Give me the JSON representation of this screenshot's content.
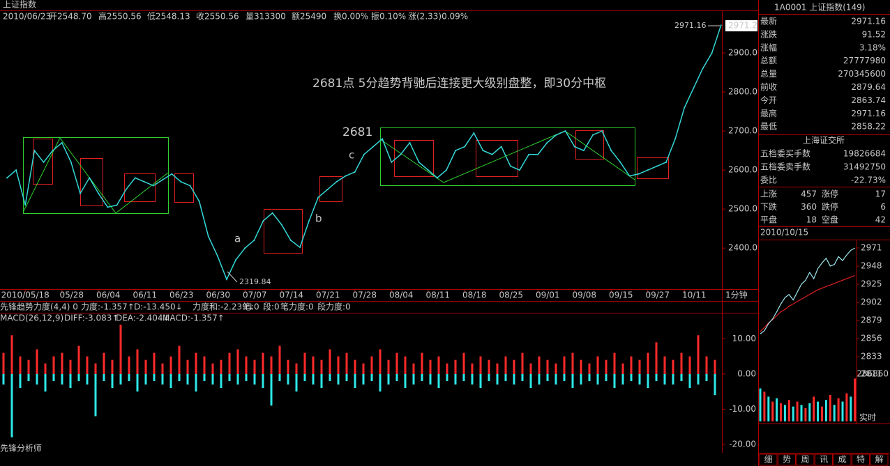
{
  "window_title": "上证指数",
  "quote_bar": [
    "2010/06/23",
    "开2548.70",
    "高2550.56",
    "低2548.13",
    "收2550.56",
    "量313300",
    "额25490",
    "换0.00%",
    "振0.10%",
    "涨(2.33)0.09%"
  ],
  "indicator_bar": [
    "先锋趋势力度(4,4) 0",
    "力度:-1.357↑",
    "D:-13.450↓",
    "力度和:-2.239↓",
    "笔:0",
    "段:0",
    "笔力度:0",
    "段力度:0"
  ],
  "macd_bar": [
    "MACD(26,12,9)",
    "DIFF:-3.083↑",
    "DEA:-2.404↓",
    "MACD:-1.357↑"
  ],
  "footer_label": "先锋分析师",
  "main_chart": {
    "type": "line",
    "color": "#35d8d8",
    "categories": [
      null,
      null,
      "2010/05/18",
      null,
      null,
      null,
      "05/28",
      null,
      null,
      null,
      "06/04",
      null,
      null,
      null,
      "06/11",
      null,
      null,
      null,
      "06/23",
      null,
      null,
      null,
      "06/30",
      null,
      null,
      null,
      "07/07",
      null,
      null,
      null,
      "07/14",
      null,
      null,
      null,
      "07/21",
      null,
      null,
      null,
      "07/28",
      null,
      null,
      null,
      "08/04",
      null,
      null,
      null,
      "08/11",
      null,
      null,
      null,
      "08/18",
      null,
      null,
      null,
      "08/25",
      null,
      null,
      null,
      "09/01",
      null,
      null,
      null,
      "09/08",
      null,
      null,
      null,
      "09/15",
      null,
      null,
      null,
      "09/27",
      null,
      null,
      null,
      "10/11",
      null,
      null,
      null,
      null
    ],
    "values": [
      2580,
      2600,
      2510,
      2650,
      2620,
      2650,
      2670,
      2620,
      2540,
      2580,
      2540,
      2505,
      2510,
      2550,
      2580,
      2570,
      2560,
      2575,
      2590,
      2570,
      2560,
      2520,
      2430,
      2380,
      2319.84,
      2370,
      2400,
      2420,
      2470,
      2490,
      2460,
      2420,
      2402,
      2470,
      2530,
      2550,
      2570,
      2585,
      2595,
      2640,
      2660,
      2680,
      2620,
      2640,
      2670,
      2620,
      2600,
      2580,
      2600,
      2650,
      2660,
      2695,
      2650,
      2640,
      2660,
      2610,
      2600,
      2640,
      2640,
      2670,
      2690,
      2700,
      2660,
      2650,
      2690,
      2700,
      2650,
      2620,
      2585,
      2590,
      2600,
      2610,
      2620,
      2680,
      2760,
      2810,
      2860,
      2900,
      2971.16
    ],
    "ylim": [
      2295,
      3009
    ],
    "yticks": [
      {
        "value": 2400,
        "label": "2400.0"
      },
      {
        "value": 2500,
        "label": "2500.0"
      },
      {
        "value": 2600,
        "label": "2600.0"
      },
      {
        "value": 2700,
        "label": "2700.0"
      },
      {
        "value": 2800,
        "label": "2800.0"
      },
      {
        "value": 2900,
        "label": "2900.0"
      }
    ],
    "annotations": [
      "2681点 5分趋势背驰后连接更大级别盘整，即30分中枢",
      "2681",
      "c",
      "b",
      "a"
    ],
    "high_label": "2971.16",
    "low_label": "2319.84",
    "last_price_label": "2971.2",
    "period_label": "1分钟"
  },
  "macd_chart": {
    "type": "bar",
    "ylim": [
      -22.4,
      17.2
    ],
    "yticks": [
      {
        "value": 10,
        "label": "10.00"
      },
      {
        "value": 0,
        "label": "0.00"
      },
      {
        "value": -10,
        "label": "-10.00"
      },
      {
        "value": -20,
        "label": "-20.00"
      }
    ],
    "series": [
      {
        "color": "#ff2a2a",
        "values": [
          6,
          11,
          5,
          4,
          7,
          3,
          5,
          6,
          4,
          8,
          5,
          3,
          6,
          4,
          14,
          5,
          7,
          4,
          6,
          3,
          5,
          8,
          4,
          6,
          5,
          3,
          4,
          6,
          7,
          5,
          4,
          6,
          5,
          8,
          4,
          3,
          6,
          5,
          4,
          7,
          5,
          6,
          4,
          3,
          5,
          7,
          4,
          6,
          5,
          3,
          6,
          4,
          5,
          3,
          4,
          6,
          3,
          5,
          4,
          3,
          5,
          4,
          6,
          3,
          5,
          4,
          3,
          5,
          6,
          4,
          3,
          5,
          4,
          6,
          3,
          5,
          4,
          6,
          9,
          5,
          4,
          6,
          5,
          11,
          5,
          4
        ]
      },
      {
        "color": "#2ee8e8",
        "values": [
          -3,
          -18,
          -4,
          -2,
          -3,
          -5,
          -2,
          -3,
          -4,
          -2,
          -3,
          -12,
          -2,
          -4,
          -3,
          -2,
          -5,
          -3,
          -2,
          -3,
          -4,
          -2,
          -3,
          -5,
          -2,
          -3,
          -4,
          -2,
          -3,
          -2,
          -3,
          -4,
          -9,
          -2,
          -3,
          -5,
          -2,
          -3,
          -4,
          -2,
          -3,
          -2,
          -4,
          -3,
          -2,
          -5,
          -3,
          -2,
          -4,
          -3,
          -2,
          -3,
          -4,
          -2,
          -3,
          -2,
          -3,
          -4,
          -2,
          -3,
          -2,
          -3,
          -2,
          -4,
          -3,
          -2,
          -3,
          -2,
          -4,
          -3,
          -2,
          -3,
          -2,
          -4,
          -3,
          -2,
          -3,
          -4,
          -2,
          -3,
          -3,
          -2,
          -4,
          -3,
          -2,
          -6
        ]
      }
    ]
  },
  "side_panel": {
    "header": "1A0001 上证指数(149)",
    "rows": [
      [
        "最新",
        2971.16
      ],
      [
        "涨跌",
        91.52
      ],
      [
        "涨幅",
        "3.18%"
      ],
      [
        "总额",
        27777980
      ],
      [
        "总量",
        270345600
      ],
      [
        "前收",
        2879.64
      ],
      [
        "今开",
        2863.74
      ],
      [
        "最高",
        2971.16
      ],
      [
        "最低",
        2858.22
      ]
    ],
    "exchange": "上海证交所",
    "order_rows": [
      [
        "五档委买手数",
        19826684
      ],
      [
        "五档委卖手数",
        31492750
      ],
      [
        "委比",
        "-22.73%"
      ]
    ],
    "breadth": [
      [
        "上涨",
        457,
        "涨停",
        17
      ],
      [
        "下跌",
        360,
        "跌停",
        6
      ],
      [
        "平盘",
        18,
        "空盘",
        42
      ]
    ],
    "date": "2010/10/15",
    "intraday_chart": {
      "type": "line",
      "price": [
        2862,
        2866,
        2875,
        2881,
        2890,
        2900,
        2908,
        2912,
        2905,
        2915,
        2925,
        2930,
        2940,
        2932,
        2945,
        2952,
        2958,
        2948,
        2950,
        2960,
        2955,
        2962,
        2968,
        2971
      ],
      "average": [
        2865,
        2870,
        2876,
        2880,
        2885,
        2890,
        2893,
        2897,
        2900,
        2903,
        2906,
        2909,
        2912,
        2915,
        2918,
        2920,
        2922,
        2924,
        2926,
        2928,
        2930,
        2932,
        2934,
        2936
      ],
      "price_color": "#9ee8f0",
      "average_color": "#e02020",
      "ylim": [
        2803.9,
        2980.7
      ],
      "yticks": [
        2971,
        2948,
        2925,
        2902,
        2879,
        2856,
        2833,
        2811
      ],
      "volume": [
        200000,
        180000,
        150000,
        120000,
        140000,
        110000,
        100000,
        130000,
        90000,
        120000,
        100000,
        80000,
        110000,
        150000,
        120000,
        90000,
        130000,
        160000,
        100000,
        140000,
        120000,
        170000,
        150000,
        260000
      ],
      "volume_colors": [
        "#2ee8e8",
        "#ff2a2a"
      ],
      "volume_max": 286860,
      "mode_label": "实时"
    },
    "tabs": [
      "细",
      "势",
      "周",
      "讯",
      "成",
      "特",
      "解"
    ]
  }
}
